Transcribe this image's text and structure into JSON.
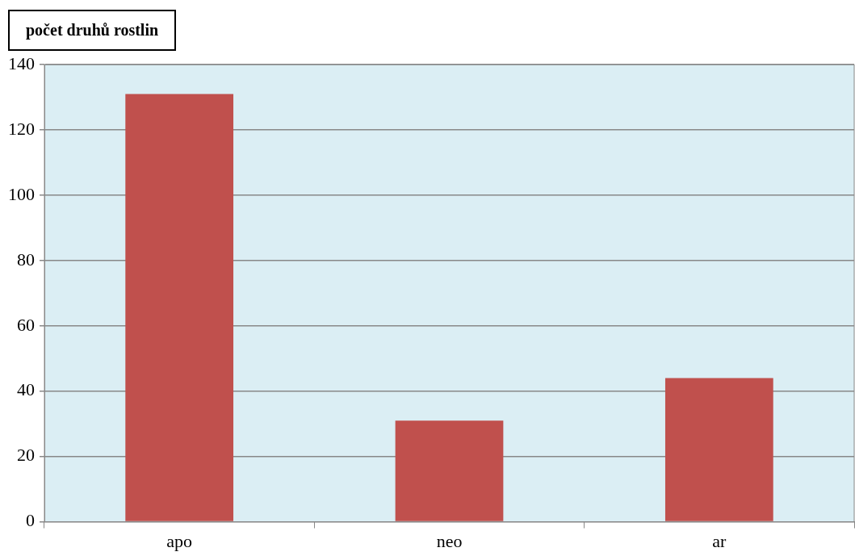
{
  "chart_data": {
    "type": "bar",
    "title": "počet druhů rostlin",
    "categories": [
      "apo",
      "neo",
      "ar"
    ],
    "values": [
      131,
      31,
      44
    ],
    "color": "#c0504d",
    "ylim": [
      0,
      140
    ],
    "yticks": [
      0,
      20,
      40,
      60,
      80,
      100,
      120,
      140
    ],
    "grid": "y"
  }
}
